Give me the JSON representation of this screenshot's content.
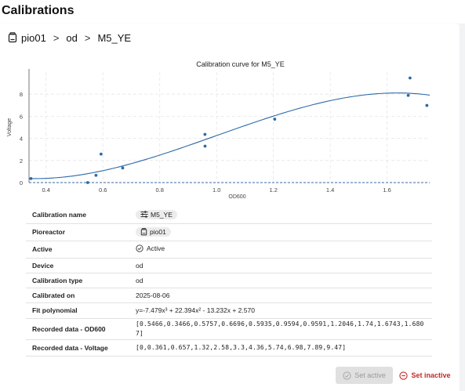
{
  "page_title": "Calibrations",
  "breadcrumb": {
    "unit": "pio01",
    "device": "od",
    "calibration": "M5_YE"
  },
  "chart_data": {
    "type": "scatter",
    "title": "Calibration curve for M5_YE",
    "xlabel": "OD600",
    "ylabel": "Voltage",
    "xlim": [
      0.34,
      1.75
    ],
    "ylim": [
      0,
      10
    ],
    "xticks": [
      "0.4",
      "0.6",
      "0.8",
      "1.0",
      "1.2",
      "1.4",
      "1.6"
    ],
    "yticks": [
      "0",
      "2",
      "4",
      "6",
      "8"
    ],
    "grid": true,
    "series": [
      {
        "type": "scatter",
        "x": [
          0.5466,
          0.3466,
          0.5757,
          0.6696,
          0.5935,
          0.9594,
          0.9591,
          1.2046,
          1.74,
          1.6743,
          1.6807
        ],
        "y": [
          0,
          0.361,
          0.657,
          1.32,
          2.58,
          3.3,
          4.36,
          5.74,
          6.98,
          7.89,
          9.47
        ],
        "color": "#2c6aa8"
      },
      {
        "type": "line",
        "fit": [
          -7.479,
          22.394,
          -13.232,
          2.57
        ],
        "color": "#2c6aa8"
      }
    ]
  },
  "details": {
    "rows": [
      {
        "key": "Calibration name",
        "type": "chip",
        "value": "M5_YE",
        "icon": "sliders-icon"
      },
      {
        "key": "Pioreactor",
        "type": "chip",
        "value": "pio01",
        "icon": "pioreactor-icon"
      },
      {
        "key": "Active",
        "type": "status",
        "value": "Active",
        "icon": "check-circle-icon"
      },
      {
        "key": "Device",
        "type": "text",
        "value": "od"
      },
      {
        "key": "Calibration type",
        "type": "text",
        "value": "od"
      },
      {
        "key": "Calibrated on",
        "type": "text",
        "value": "2025-08-06"
      },
      {
        "key": "Fit polynomial",
        "type": "text",
        "value": "y=-7.479x³ + 22.394x² - 13.232x + 2.570"
      },
      {
        "key": "Recorded data - OD600",
        "type": "mono",
        "value": "[0.5466,0.3466,0.5757,0.6696,0.5935,0.9594,0.9591,1.2046,1.74,1.6743,1.6807]"
      },
      {
        "key": "Recorded data - Voltage",
        "type": "mono",
        "value": "[0,0.361,0.657,1.32,2.58,3.3,4.36,5.74,6.98,7.89,9.47]"
      }
    ]
  },
  "actions": {
    "set_active": "Set active",
    "set_inactive": "Set inactive"
  },
  "colors": {
    "accent": "#2c6aa8",
    "danger": "#c62828",
    "disabled_bg": "#e0e0e0"
  }
}
